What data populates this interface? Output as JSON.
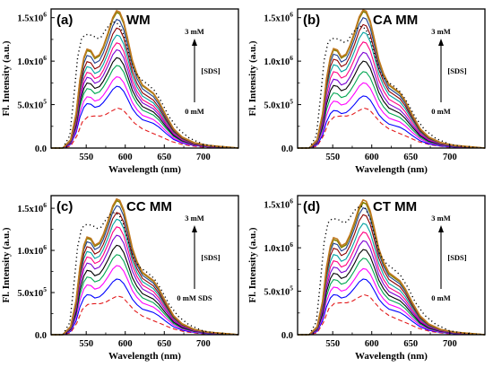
{
  "figure": {
    "x_tick_labels": [
      "550",
      "600",
      "650",
      "700"
    ],
    "y_tick_labels": [
      "0.0",
      "5.0x10",
      "1.0x10",
      "1.5x10"
    ],
    "y_tick_exponent": "5",
    "y_tick_exponent_big": "6",
    "xlabel": "Wavelength (nm)",
    "ylabel": "Fl. Intensity (a.u.)",
    "arrow_top_label": "3 mM",
    "arrow_mid_label": "[SDS]"
  },
  "chart_data": [
    {
      "type": "line",
      "panel_label": "(a)",
      "title": "WM",
      "arrow_bottom_label": "0 mM",
      "xlabel": "Wavelength (nm)",
      "ylabel": "Fl. Intensity (a.u.)",
      "xlim": [
        505,
        745
      ],
      "ylim": [
        0,
        1600000
      ],
      "peak_scale": [
        460000,
        710000,
        820000,
        950000,
        1040000,
        1130000,
        1210000,
        1300000,
        1380000,
        1480000,
        1560000,
        1580000
      ],
      "dotted_peak": 1450000,
      "colors": [
        "#e31a1c",
        "#0000ff",
        "#ff00ff",
        "#00a651",
        "#000000",
        "#7b00d4",
        "#ff0080",
        "#00a0a0",
        "#8b0000",
        "#1f3f8f",
        "#808000",
        "#c07820"
      ],
      "grid": false
    },
    {
      "type": "line",
      "panel_label": "(b)",
      "title": "CA MM",
      "arrow_bottom_label": "0 mM",
      "xlabel": "Wavelength (nm)",
      "ylabel": "Fl. Intensity (a.u.)",
      "xlim": [
        505,
        745
      ],
      "ylim": [
        0,
        1600000
      ],
      "peak_scale": [
        460000,
        600000,
        750000,
        880000,
        1000000,
        1100000,
        1220000,
        1330000,
        1420000,
        1500000,
        1570000,
        1590000
      ],
      "dotted_peak": 1400000,
      "colors": [
        "#e31a1c",
        "#0000ff",
        "#ff00ff",
        "#00a651",
        "#000000",
        "#7b00d4",
        "#ff0080",
        "#00a0a0",
        "#8b0000",
        "#1f3f8f",
        "#808000",
        "#c07820"
      ],
      "grid": false
    },
    {
      "type": "line",
      "panel_label": "(c)",
      "title": "CC MM",
      "arrow_bottom_label": "0 mM SDS",
      "xlabel": "Wavelength (nm)",
      "ylabel": "Fl. Intensity (a.u.)",
      "xlim": [
        505,
        745
      ],
      "ylim": [
        0,
        1650000
      ],
      "peak_scale": [
        460000,
        660000,
        820000,
        950000,
        1060000,
        1180000,
        1280000,
        1370000,
        1450000,
        1530000,
        1590000,
        1610000
      ],
      "dotted_peak": 1450000,
      "colors": [
        "#e31a1c",
        "#0000ff",
        "#ff00ff",
        "#00a651",
        "#000000",
        "#7b00d4",
        "#ff0080",
        "#00a0a0",
        "#8b0000",
        "#1f3f8f",
        "#808000",
        "#c07820"
      ],
      "grid": false
    },
    {
      "type": "line",
      "panel_label": "(d)",
      "title": "CT MM",
      "arrow_bottom_label": "0 mM",
      "xlabel": "Wavelength (nm)",
      "ylabel": "Fl. Intensity (a.u.)",
      "xlim": [
        505,
        745
      ],
      "ylim": [
        0,
        1600000
      ],
      "peak_scale": [
        460000,
        640000,
        760000,
        880000,
        980000,
        1080000,
        1180000,
        1280000,
        1380000,
        1460000,
        1520000,
        1550000
      ],
      "dotted_peak": 1480000,
      "colors": [
        "#e31a1c",
        "#0000ff",
        "#ff00ff",
        "#00a651",
        "#000000",
        "#7b00d4",
        "#ff0080",
        "#00a0a0",
        "#8b0000",
        "#1f3f8f",
        "#808000",
        "#c07820"
      ],
      "grid": false
    }
  ]
}
